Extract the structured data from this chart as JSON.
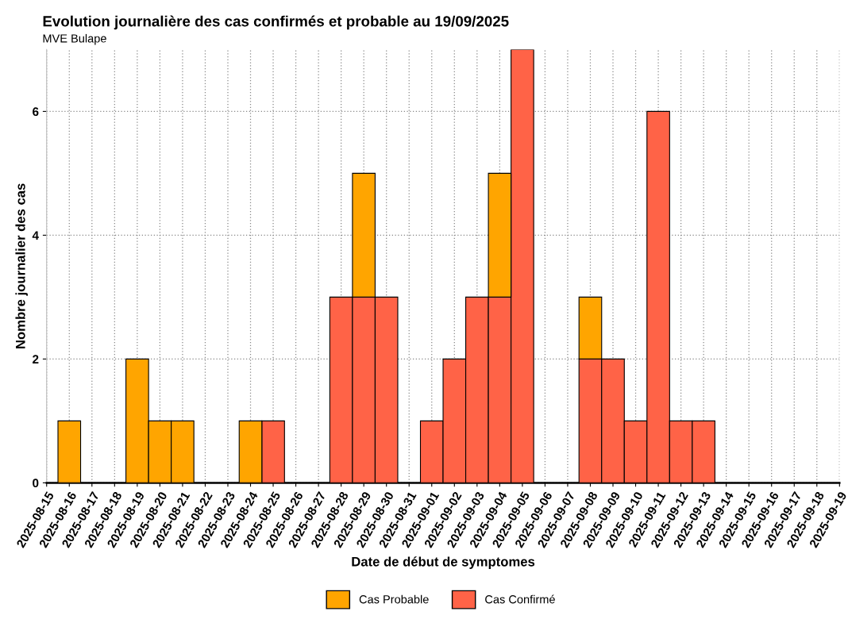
{
  "chart_data": {
    "type": "bar",
    "stacked": true,
    "title": "Evolution journalière des cas confirmés et probable au 19/09/2025",
    "subtitle": "MVE Bulape",
    "xlabel": "Date de début de symptomes",
    "ylabel": "Nombre journalier des cas",
    "x": [
      "2025-08-16",
      "2025-08-19",
      "2025-08-20",
      "2025-08-21",
      "2025-08-24",
      "2025-08-25",
      "2025-08-28",
      "2025-08-29",
      "2025-08-30",
      "2025-09-01",
      "2025-09-02",
      "2025-09-03",
      "2025-09-04",
      "2025-09-05",
      "2025-09-08",
      "2025-09-09",
      "2025-09-10",
      "2025-09-11",
      "2025-09-12",
      "2025-09-13"
    ],
    "series": [
      {
        "name": "Cas Confirmé",
        "color": "#ff6347",
        "values": [
          null,
          null,
          null,
          null,
          null,
          1,
          3,
          3,
          3,
          1,
          2,
          3,
          3,
          7,
          2,
          2,
          1,
          6,
          1,
          1
        ]
      },
      {
        "name": "Cas Probable",
        "color": "#ffa500",
        "values": [
          1,
          2,
          1,
          1,
          1,
          null,
          null,
          2,
          null,
          null,
          null,
          null,
          2,
          null,
          1,
          null,
          null,
          null,
          null,
          null
        ]
      }
    ],
    "xlim": [
      "2025-08-15",
      "2025-09-19"
    ],
    "xticks": [
      "2025-08-15",
      "2025-08-16",
      "2025-08-17",
      "2025-08-18",
      "2025-08-19",
      "2025-08-20",
      "2025-08-21",
      "2025-08-22",
      "2025-08-23",
      "2025-08-24",
      "2025-08-25",
      "2025-08-26",
      "2025-08-27",
      "2025-08-28",
      "2025-08-29",
      "2025-08-30",
      "2025-08-31",
      "2025-09-01",
      "2025-09-02",
      "2025-09-03",
      "2025-09-04",
      "2025-09-05",
      "2025-09-06",
      "2025-09-07",
      "2025-09-08",
      "2025-09-09",
      "2025-09-10",
      "2025-09-11",
      "2025-09-12",
      "2025-09-13",
      "2025-09-14",
      "2025-09-15",
      "2025-09-16",
      "2025-09-17",
      "2025-09-18",
      "2025-09-19"
    ],
    "ylim": [
      0,
      7
    ],
    "yticks": [
      0,
      2,
      4,
      6
    ],
    "grid": true,
    "legend": "bottom"
  }
}
